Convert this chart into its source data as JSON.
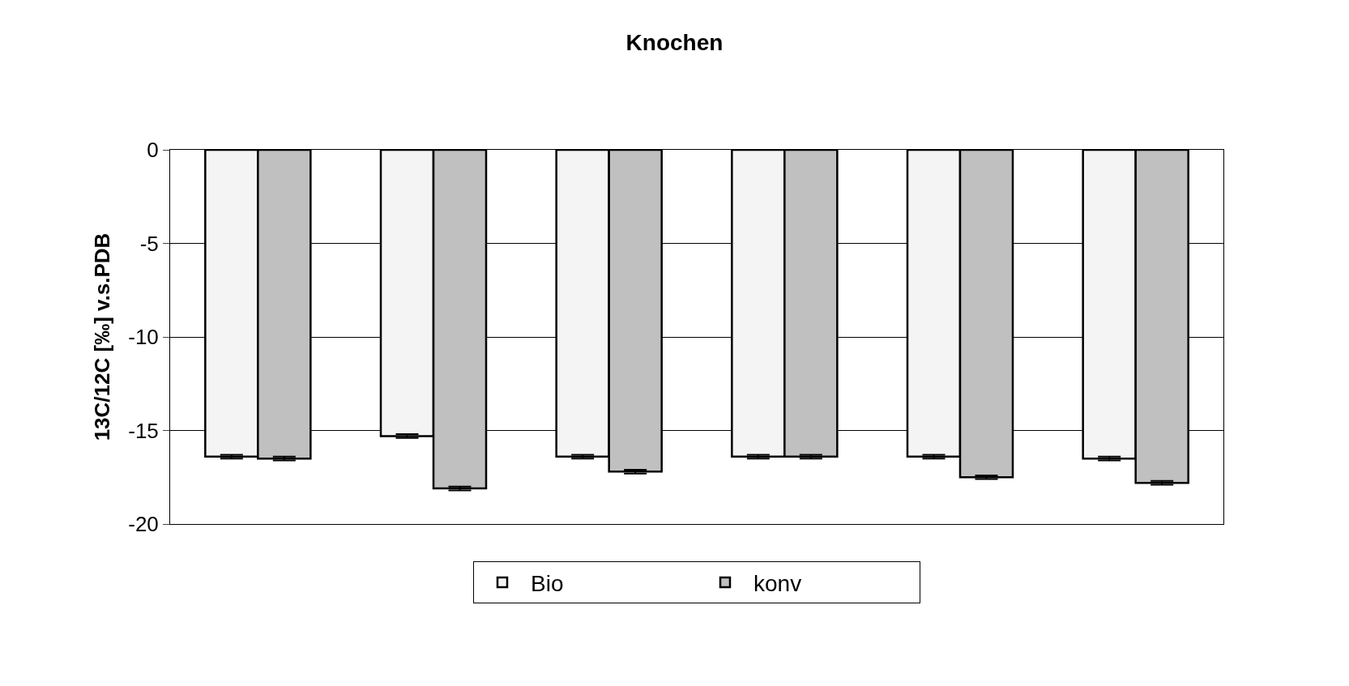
{
  "chart_data": {
    "type": "bar",
    "title": "Knochen",
    "ylabel": "13C/12C [‰] v.s.PDB",
    "categories": [
      null,
      null,
      null,
      null,
      null,
      null
    ],
    "series": [
      {
        "name": "Bio",
        "color": "#f4f4f4",
        "values": [
          -16.4,
          -15.3,
          -16.4,
          -16.4,
          -16.4,
          -16.5
        ],
        "errors": [
          0.1,
          0.1,
          0.1,
          0.1,
          0.1,
          0.1
        ]
      },
      {
        "name": "konv",
        "color": "#c0c0c0",
        "values": [
          -16.5,
          -18.1,
          -17.2,
          -16.4,
          -17.5,
          -17.8
        ],
        "errors": [
          0.1,
          0.1,
          0.1,
          0.1,
          0.1,
          0.1
        ]
      }
    ],
    "ylim": [
      -20,
      0
    ],
    "yticks": [
      -20,
      -15,
      -10,
      -5,
      0
    ],
    "grid": "y",
    "legend": "bottom",
    "tick_labels": "y"
  }
}
